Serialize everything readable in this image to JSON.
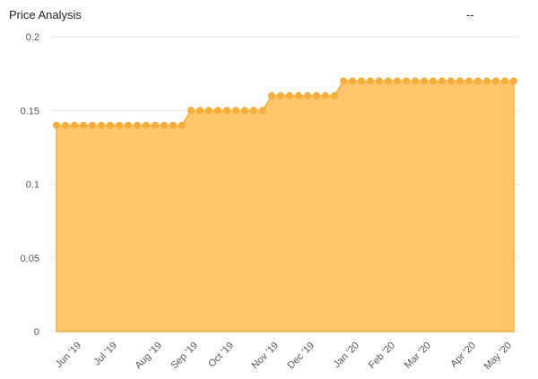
{
  "chart_data": {
    "type": "area",
    "title": "Price Analysis",
    "status": "--",
    "categories": [
      null,
      null,
      "Jun '19",
      null,
      null,
      null,
      "Jul '19",
      null,
      null,
      null,
      null,
      "Aug '19",
      null,
      null,
      null,
      "Sep '19",
      null,
      null,
      null,
      "Oct '19",
      null,
      null,
      null,
      null,
      "Nov '19",
      null,
      null,
      null,
      "Dec '19",
      null,
      null,
      null,
      null,
      "Jan '20",
      null,
      null,
      null,
      "Feb '20",
      null,
      null,
      null,
      "Mar '20",
      null,
      null,
      null,
      null,
      "Apr '20",
      null,
      null,
      null,
      "May '20",
      null
    ],
    "values": [
      0.14,
      0.14,
      0.14,
      0.14,
      0.14,
      0.14,
      0.14,
      0.14,
      0.14,
      0.14,
      0.14,
      0.14,
      0.14,
      0.14,
      0.14,
      0.15,
      0.15,
      0.15,
      0.15,
      0.15,
      0.15,
      0.15,
      0.15,
      0.15,
      0.16,
      0.16,
      0.16,
      0.16,
      0.16,
      0.16,
      0.16,
      0.16,
      0.17,
      0.17,
      0.17,
      0.17,
      0.17,
      0.17,
      0.17,
      0.17,
      0.17,
      0.17,
      0.17,
      0.17,
      0.17,
      0.17,
      0.17,
      0.17,
      0.17,
      0.17,
      0.17,
      0.17
    ],
    "color": "#f5ae3a",
    "fill_color": "#fec56b",
    "ylim": [
      0,
      0.2
    ],
    "yticks": [
      0,
      0.05,
      0.1,
      0.15,
      0.2
    ],
    "grid": true
  }
}
